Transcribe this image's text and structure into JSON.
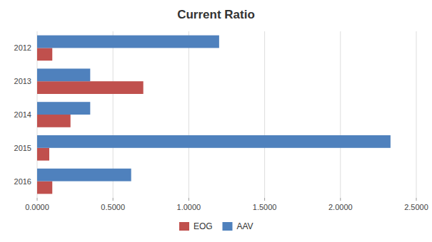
{
  "chart_data": {
    "type": "bar",
    "orientation": "horizontal",
    "title": "Current Ratio",
    "categories": [
      "2012",
      "2013",
      "2014",
      "2015",
      "2016"
    ],
    "series": [
      {
        "name": "EOG",
        "color": "#C0504D",
        "values": [
          0.1,
          0.7,
          0.22,
          0.08,
          0.1
        ]
      },
      {
        "name": "AAV",
        "color": "#4F81BD",
        "values": [
          1.2,
          0.35,
          0.35,
          2.33,
          0.62
        ]
      }
    ],
    "xlim": [
      0,
      2.5
    ],
    "xticks": [
      {
        "value": 0.0,
        "label": "0.0000"
      },
      {
        "value": 0.5,
        "label": "0.5000"
      },
      {
        "value": 1.0,
        "label": "1.0000"
      },
      {
        "value": 1.5,
        "label": "1.5000"
      },
      {
        "value": 2.0,
        "label": "2.0000"
      },
      {
        "value": 2.5,
        "label": "2.5000"
      }
    ],
    "grid": true,
    "legend": "bottom"
  }
}
